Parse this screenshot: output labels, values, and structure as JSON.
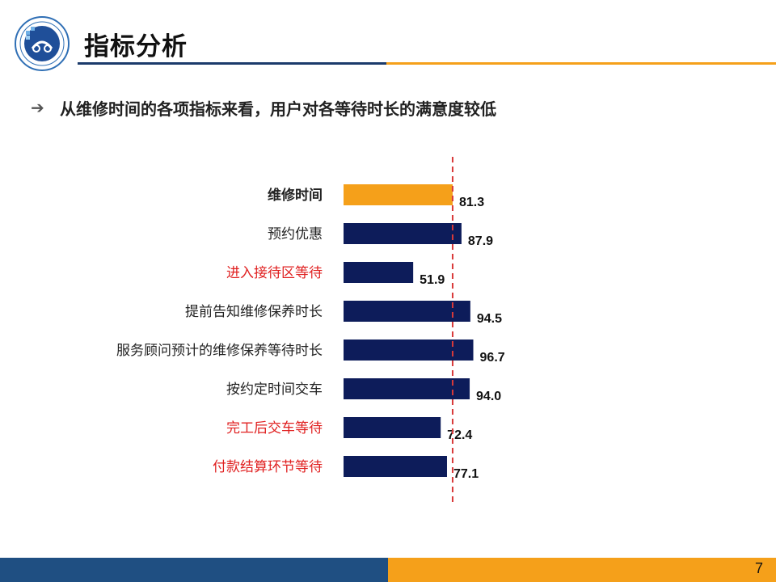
{
  "header": {
    "title": "指标分析"
  },
  "subtitle": {
    "bullet": "➔",
    "text": "从维修时间的各项指标来看，用户对各等待时长的满意度较低"
  },
  "footer": {
    "page_number": "7"
  },
  "colors": {
    "highlight_bar": "#f5a01a",
    "bar": "#0d1c5a",
    "reference_line": "#d93a3a",
    "red_label": "#e02020",
    "footer_blue": "#1f4f82",
    "footer_orange": "#f5a01a"
  },
  "chart_data": {
    "type": "bar",
    "orientation": "horizontal",
    "categories": [
      "维修时间",
      "预约优惠",
      "进入接待区等待",
      "提前告知维修保养时长",
      "服务顾问预计的维修保养等待时长",
      "按约定时间交车",
      "完工后交车等待",
      "付款结算环节等待"
    ],
    "values": [
      81.3,
      87.9,
      51.9,
      94.5,
      96.7,
      94.0,
      72.4,
      77.1
    ],
    "value_labels": [
      "81.3",
      "87.9",
      "51.9",
      "94.5",
      "96.7",
      "94.0",
      "72.4",
      "77.1"
    ],
    "highlighted_category": "维修时间",
    "red_categories": [
      "进入接待区等待",
      "完工后交车等待",
      "付款结算环节等待"
    ],
    "reference_value": 81.3,
    "reference_line_style": "dashed",
    "xlim": [
      0,
      100
    ],
    "grid": false,
    "axis_visible": false
  }
}
